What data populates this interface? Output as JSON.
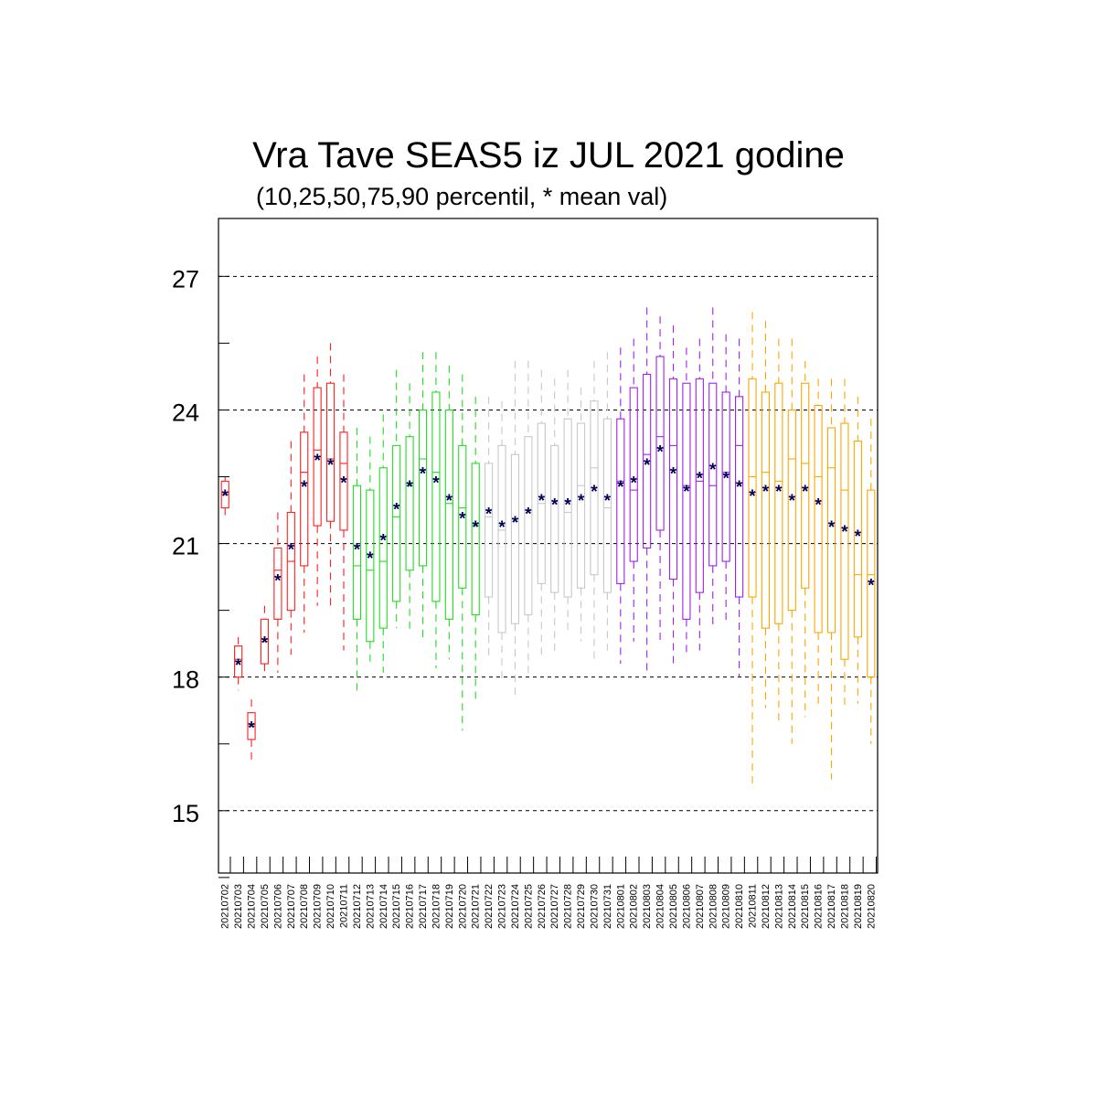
{
  "chart_data": {
    "type": "box",
    "title": "Vra Tave SEAS5 iz JUL 2021 godine",
    "subtitle": "(10,25,50,75,90 percentil, * mean val)",
    "xlabel": "",
    "ylabel": "",
    "ylim": [
      13.6,
      28.3
    ],
    "yticks": [
      15,
      18,
      21,
      24,
      27
    ],
    "grid": "dashed horizontal lines at major y ticks",
    "mean_marker": "*",
    "mean_color": "#00005a",
    "month_colors": {
      "2021-07-early": "#ff2020",
      "2021-07-mid": "#22dd22",
      "2021-07-late": "#c8c8c8",
      "2021-08-early": "#a020f0",
      "2021-08-late": "#ffa500"
    },
    "categories": [
      "20210702",
      "20210703",
      "20210704",
      "20210705",
      "20210706",
      "20210707",
      "20210708",
      "20210709",
      "20210710",
      "20210711",
      "20210712",
      "20210713",
      "20210714",
      "20210715",
      "20210716",
      "20210717",
      "20210718",
      "20210719",
      "20210720",
      "20210721",
      "20210722",
      "20210723",
      "20210724",
      "20210725",
      "20210726",
      "20210727",
      "20210728",
      "20210729",
      "20210730",
      "20210731",
      "20210801",
      "20210802",
      "20210803",
      "20210804",
      "20210805",
      "20210806",
      "20210807",
      "20210808",
      "20210809",
      "20210810",
      "20210811",
      "20210812",
      "20210813",
      "20210814",
      "20210815",
      "20210816",
      "20210817",
      "20210818",
      "20210819",
      "20210820"
    ],
    "series": [
      {
        "color_group": "red",
        "values": [
          {
            "p10": 21.6,
            "p25": 21.8,
            "p50": 22.1,
            "p75": 22.4,
            "p90": 22.5,
            "mean": 22.1
          },
          {
            "p10": 17.7,
            "p25": 18.0,
            "p50": 18.4,
            "p75": 18.7,
            "p90": 18.9,
            "mean": 18.3
          },
          {
            "p10": 16.1,
            "p25": 16.6,
            "p50": 16.9,
            "p75": 17.2,
            "p90": 17.5,
            "mean": 16.9
          },
          {
            "p10": 18.1,
            "p25": 18.3,
            "p50": 18.8,
            "p75": 19.3,
            "p90": 19.6,
            "mean": 18.8
          },
          {
            "p10": 18.1,
            "p25": 19.3,
            "p50": 20.4,
            "p75": 20.9,
            "p90": 21.7,
            "mean": 20.2
          },
          {
            "p10": 18.5,
            "p25": 19.5,
            "p50": 20.6,
            "p75": 21.7,
            "p90": 23.3,
            "mean": 20.9
          },
          {
            "p10": 19.0,
            "p25": 20.5,
            "p50": 22.6,
            "p75": 23.5,
            "p90": 24.8,
            "mean": 22.3
          },
          {
            "p10": 19.6,
            "p25": 21.4,
            "p50": 23.1,
            "p75": 24.5,
            "p90": 25.2,
            "mean": 22.9
          },
          {
            "p10": 19.6,
            "p25": 21.5,
            "p50": 22.9,
            "p75": 24.6,
            "p90": 25.5,
            "mean": 22.8
          },
          {
            "p10": 18.6,
            "p25": 21.3,
            "p50": 22.8,
            "p75": 23.5,
            "p90": 24.8,
            "mean": 22.4
          }
        ]
      },
      {
        "color_group": "green",
        "values": [
          {
            "p10": 17.6,
            "p25": 19.3,
            "p50": 20.5,
            "p75": 22.3,
            "p90": 23.6,
            "mean": 20.9
          },
          {
            "p10": 18.3,
            "p25": 18.8,
            "p50": 20.4,
            "p75": 22.2,
            "p90": 23.4,
            "mean": 20.7
          },
          {
            "p10": 18.1,
            "p25": 19.1,
            "p50": 20.6,
            "p75": 22.7,
            "p90": 23.9,
            "mean": 21.1
          },
          {
            "p10": 19.1,
            "p25": 19.7,
            "p50": 21.6,
            "p75": 23.2,
            "p90": 24.9,
            "mean": 21.8
          },
          {
            "p10": 19.0,
            "p25": 20.4,
            "p50": 22.3,
            "p75": 23.4,
            "p90": 24.6,
            "mean": 22.3
          },
          {
            "p10": 18.8,
            "p25": 20.5,
            "p50": 22.9,
            "p75": 24.0,
            "p90": 25.3,
            "mean": 22.6
          },
          {
            "p10": 18.2,
            "p25": 19.7,
            "p50": 22.6,
            "p75": 24.4,
            "p90": 25.3,
            "mean": 22.4
          },
          {
            "p10": 18.4,
            "p25": 19.3,
            "p50": 21.9,
            "p75": 24.0,
            "p90": 25.0,
            "mean": 22.0
          },
          {
            "p10": 16.8,
            "p25": 20.0,
            "p50": 21.8,
            "p75": 23.2,
            "p90": 24.8,
            "mean": 21.6
          },
          {
            "p10": 17.5,
            "p25": 19.4,
            "p50": 21.4,
            "p75": 22.8,
            "p90": 24.3,
            "mean": 21.4
          }
        ]
      },
      {
        "color_group": "gray",
        "values": [
          {
            "p10": 18.4,
            "p25": 19.8,
            "p50": 21.6,
            "p75": 22.8,
            "p90": 24.3,
            "mean": 21.7
          },
          {
            "p10": 17.9,
            "p25": 19.0,
            "p50": 21.3,
            "p75": 23.2,
            "p90": 24.2,
            "mean": 21.4
          },
          {
            "p10": 17.5,
            "p25": 19.2,
            "p50": 21.5,
            "p75": 23.0,
            "p90": 25.1,
            "mean": 21.5
          },
          {
            "p10": 18.0,
            "p25": 19.4,
            "p50": 21.7,
            "p75": 23.4,
            "p90": 25.1,
            "mean": 21.7
          },
          {
            "p10": 18.5,
            "p25": 20.1,
            "p50": 21.9,
            "p75": 23.7,
            "p90": 24.9,
            "mean": 22.0
          },
          {
            "p10": 18.5,
            "p25": 19.9,
            "p50": 21.9,
            "p75": 23.2,
            "p90": 24.7,
            "mean": 21.9
          },
          {
            "p10": 19.0,
            "p25": 19.8,
            "p50": 21.7,
            "p75": 23.8,
            "p90": 24.9,
            "mean": 21.9
          },
          {
            "p10": 18.8,
            "p25": 20.0,
            "p50": 22.3,
            "p75": 23.7,
            "p90": 24.5,
            "mean": 22.0
          },
          {
            "p10": 18.3,
            "p25": 20.3,
            "p50": 22.7,
            "p75": 24.2,
            "p90": 25.1,
            "mean": 22.2
          },
          {
            "p10": 18.6,
            "p25": 19.9,
            "p50": 21.8,
            "p75": 23.8,
            "p90": 25.3,
            "mean": 22.0
          }
        ]
      },
      {
        "color_group": "purple",
        "values": [
          {
            "p10": 18.3,
            "p25": 20.1,
            "p50": 22.4,
            "p75": 23.8,
            "p90": 25.4,
            "mean": 22.3
          },
          {
            "p10": 18.8,
            "p25": 20.6,
            "p50": 22.2,
            "p75": 24.5,
            "p90": 25.6,
            "mean": 22.4
          },
          {
            "p10": 18.1,
            "p25": 20.9,
            "p50": 23.0,
            "p75": 24.8,
            "p90": 26.3,
            "mean": 22.8
          },
          {
            "p10": 18.8,
            "p25": 21.3,
            "p50": 23.4,
            "p75": 25.2,
            "p90": 26.1,
            "mean": 23.1
          },
          {
            "p10": 18.2,
            "p25": 20.2,
            "p50": 23.2,
            "p75": 24.7,
            "p90": 25.9,
            "mean": 22.6
          },
          {
            "p10": 18.5,
            "p25": 19.3,
            "p50": 22.3,
            "p75": 24.6,
            "p90": 25.4,
            "mean": 22.2
          },
          {
            "p10": 18.6,
            "p25": 19.9,
            "p50": 22.4,
            "p75": 24.7,
            "p90": 25.6,
            "mean": 22.5
          },
          {
            "p10": 19.1,
            "p25": 20.5,
            "p50": 22.3,
            "p75": 24.6,
            "p90": 26.3,
            "mean": 22.7
          },
          {
            "p10": 19.2,
            "p25": 20.6,
            "p50": 22.6,
            "p75": 24.4,
            "p90": 25.7,
            "mean": 22.5
          },
          {
            "p10": 18.0,
            "p25": 19.8,
            "p50": 23.2,
            "p75": 24.3,
            "p90": 25.6,
            "mean": 22.3
          }
        ]
      },
      {
        "color_group": "orange",
        "values": [
          {
            "p10": 15.5,
            "p25": 19.8,
            "p50": 22.5,
            "p75": 24.7,
            "p90": 26.2,
            "mean": 22.1
          },
          {
            "p10": 17.3,
            "p25": 19.1,
            "p50": 22.6,
            "p75": 24.4,
            "p90": 26.0,
            "mean": 22.2
          },
          {
            "p10": 16.9,
            "p25": 19.2,
            "p50": 22.4,
            "p75": 24.6,
            "p90": 25.6,
            "mean": 22.2
          },
          {
            "p10": 16.5,
            "p25": 19.5,
            "p50": 22.9,
            "p75": 24.0,
            "p90": 25.6,
            "mean": 22.0
          },
          {
            "p10": 17.1,
            "p25": 20.0,
            "p50": 22.8,
            "p75": 24.6,
            "p90": 25.1,
            "mean": 22.2
          },
          {
            "p10": 17.4,
            "p25": 19.0,
            "p50": 22.5,
            "p75": 24.1,
            "p90": 24.7,
            "mean": 21.9
          },
          {
            "p10": 15.7,
            "p25": 19.0,
            "p50": 22.7,
            "p75": 23.6,
            "p90": 24.7,
            "mean": 21.4
          },
          {
            "p10": 17.3,
            "p25": 18.4,
            "p50": 22.2,
            "p75": 23.7,
            "p90": 24.7,
            "mean": 21.3
          },
          {
            "p10": 17.4,
            "p25": 18.9,
            "p50": 20.3,
            "p75": 23.3,
            "p90": 24.3,
            "mean": 21.2
          },
          {
            "p10": 16.5,
            "p25": 18.0,
            "p50": 20.3,
            "p75": 22.2,
            "p90": 23.8,
            "mean": 20.1
          }
        ]
      }
    ]
  },
  "colors": {
    "red": "#ff2020",
    "green": "#22dd22",
    "gray": "#c8c8c8",
    "purple": "#a020f0",
    "orange": "#ffa500",
    "mean": "#00005a",
    "axis": "#000000"
  }
}
